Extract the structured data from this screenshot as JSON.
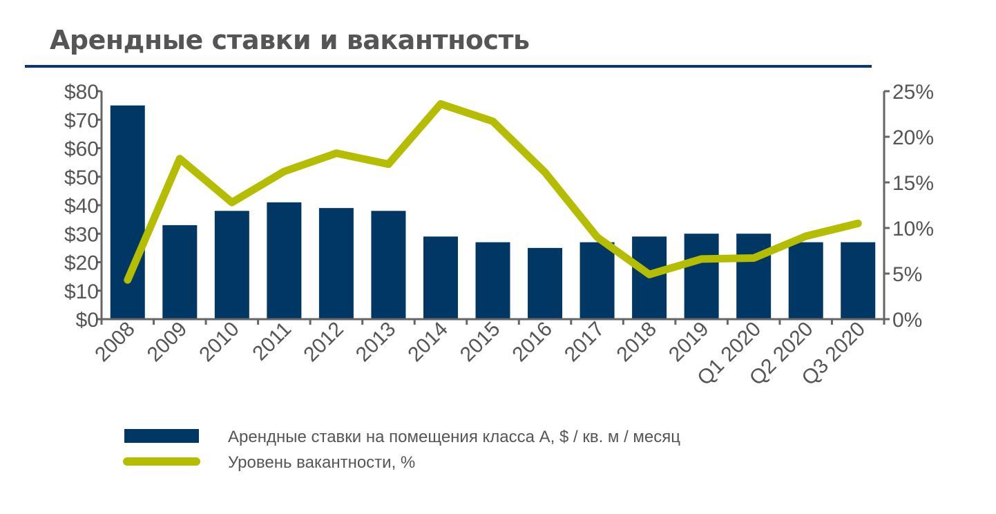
{
  "title": "Арендные ставки и вакантность",
  "colors": {
    "bar": "#003764",
    "line": "#b5bd00",
    "axis": "#666666",
    "rule": "#0c3766"
  },
  "chart_data": {
    "type": "bar+line",
    "title": "Арендные ставки и вакантность",
    "categories": [
      "2008",
      "2009",
      "2010",
      "2011",
      "2012",
      "2013",
      "2014",
      "2015",
      "2016",
      "2017",
      "2018",
      "2019",
      "Q1 2020",
      "Q2 2020",
      "Q3 2020"
    ],
    "series": [
      {
        "name": "Арендные ставки на помещения класса А, $ / кв. м / месяц",
        "type": "bar",
        "axis": "left",
        "values": [
          75,
          33,
          38,
          41,
          39,
          38,
          29,
          27,
          25,
          27,
          29,
          30,
          30,
          27,
          27
        ]
      },
      {
        "name": "Уровень вакантности, %",
        "type": "line",
        "axis": "right",
        "values": [
          4.3,
          17.6,
          12.8,
          16.2,
          18.2,
          17.0,
          23.6,
          21.7,
          16.1,
          9.0,
          4.9,
          6.6,
          6.7,
          9.1,
          10.5
        ]
      }
    ],
    "left_axis": {
      "ylim": [
        0,
        80
      ],
      "ticks": [
        "$0",
        "$10",
        "$20",
        "$30",
        "$40",
        "$50",
        "$60",
        "$70",
        "$80"
      ]
    },
    "right_axis": {
      "ylim": [
        0,
        25
      ],
      "ticks": [
        "0%",
        "5%",
        "10%",
        "15%",
        "20%",
        "25%"
      ]
    },
    "grid": false,
    "legend_position": "bottom"
  }
}
